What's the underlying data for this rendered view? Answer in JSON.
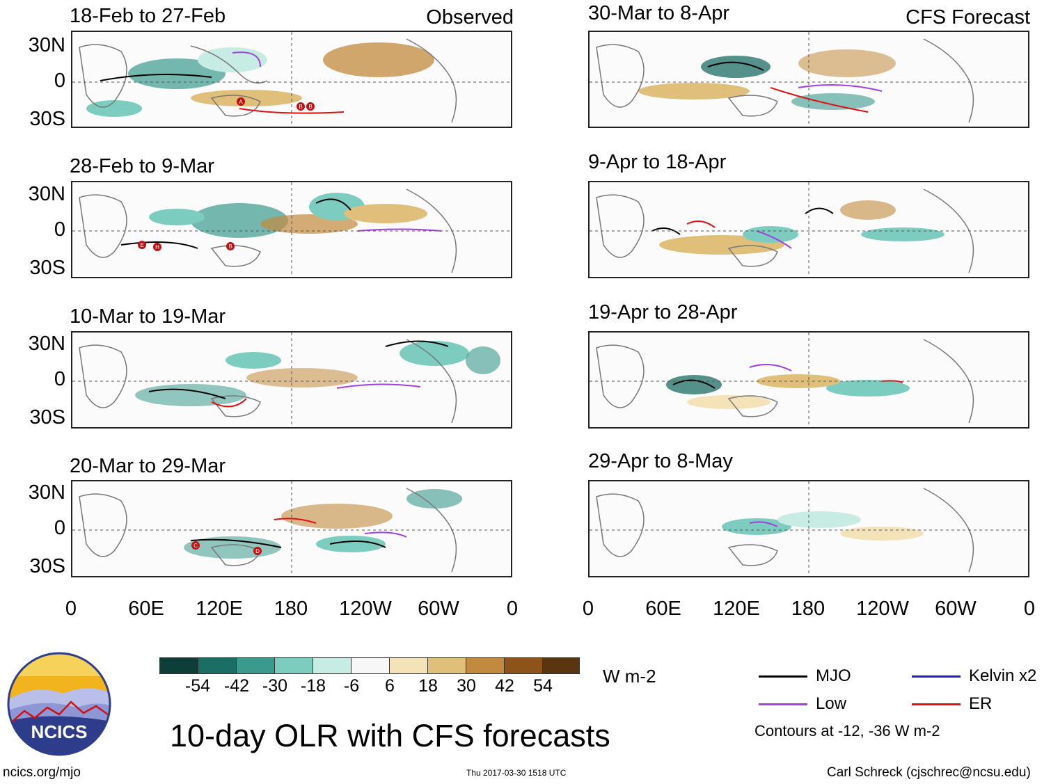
{
  "left_column_label": "Observed",
  "right_column_label": "CFS Forecast",
  "panels_left": [
    {
      "title": "18-Feb to 27-Feb"
    },
    {
      "title": "28-Feb to 9-Mar"
    },
    {
      "title": "10-Mar to 19-Mar"
    },
    {
      "title": "20-Mar to 29-Mar"
    }
  ],
  "panels_right": [
    {
      "title": "30-Mar to 8-Apr"
    },
    {
      "title": "9-Apr to 18-Apr"
    },
    {
      "title": "19-Apr to 28-Apr"
    },
    {
      "title": "29-Apr to 8-May"
    }
  ],
  "lat_labels": [
    "30N",
    "0",
    "30S"
  ],
  "lon_labels": [
    "0",
    "60E",
    "120E",
    "180",
    "120W",
    "60W",
    "0"
  ],
  "colorbar": {
    "unit": "W m-2",
    "ticks": [
      "-54",
      "-42",
      "-30",
      "-18",
      "-6",
      "6",
      "18",
      "30",
      "42",
      "54"
    ],
    "colors": [
      "#0d3f38",
      "#1b6e64",
      "#3b9a8e",
      "#7ccdc0",
      "#c7ece4",
      "#f7f7f7",
      "#f4e2b8",
      "#dfbf7a",
      "#c28a3c",
      "#8c5418",
      "#5a3510"
    ]
  },
  "legend": {
    "items": [
      {
        "label": "MJO",
        "color": "#000000"
      },
      {
        "label": "Kelvin x2",
        "color": "#1a1acc"
      },
      {
        "label": "Low",
        "color": "#a040e0"
      },
      {
        "label": "ER",
        "color": "#e01010"
      }
    ],
    "note": "Contours at -12, -36 W m-2"
  },
  "logo_text": "NCICS",
  "main_title": "10-day OLR with CFS forecasts",
  "footer": {
    "url": "ncics.org/mjo",
    "timestamp": "Thu 2017-03-30 1518 UTC",
    "credit": "Carl Schreck (cjschrec@ncsu.edu)"
  },
  "storm_markers": [
    "A",
    "B",
    "B",
    "E",
    "H",
    "B",
    "C",
    "D"
  ]
}
